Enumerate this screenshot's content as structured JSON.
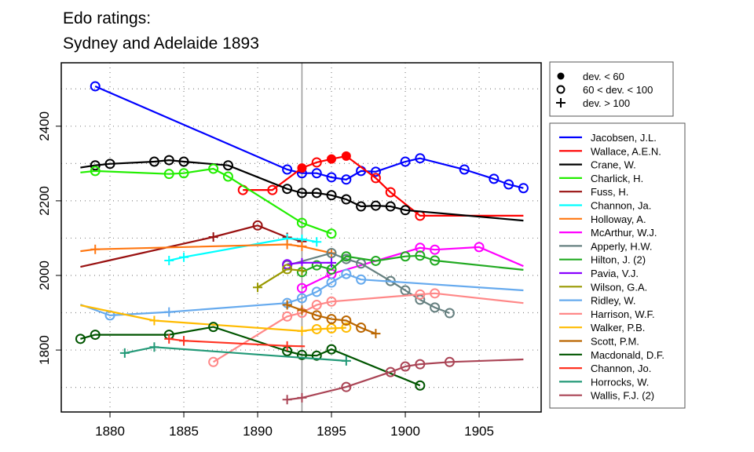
{
  "chart_data": {
    "type": "line",
    "title": [
      "Edo ratings:",
      "Sydney and Adelaide 1893"
    ],
    "xlabel": "",
    "ylabel": "",
    "xlim": [
      1876.7,
      1909.2
    ],
    "ylim": [
      1634,
      2570
    ],
    "xticks": [
      1880,
      1885,
      1890,
      1895,
      1900,
      1905
    ],
    "yticks": [
      1800,
      2000,
      2200,
      2400
    ],
    "grid_y": [
      1700,
      1800,
      1900,
      2000,
      2100,
      2200,
      2300,
      2400,
      2500
    ],
    "grid_x": [
      1880,
      1885,
      1890,
      1895,
      1900,
      1905
    ],
    "grid": true,
    "reference_year": 1893,
    "marker_legend": [
      {
        "marker": "filled",
        "label": "dev. < 60"
      },
      {
        "marker": "open",
        "label": "60 < dev. < 100"
      },
      {
        "marker": "plus",
        "label": "dev. > 100"
      }
    ],
    "legend_placement": "right",
    "series": [
      {
        "name": "Jacobsen, J.L.",
        "color": "#0000ff",
        "points": [
          [
            1879,
            2507,
            "open"
          ],
          [
            1892,
            2284,
            "open"
          ],
          [
            1893,
            2274,
            "open"
          ],
          [
            1894,
            2274,
            "open"
          ],
          [
            1895,
            2263,
            "open"
          ],
          [
            1896,
            2257,
            "open"
          ],
          [
            1897,
            2280,
            "open"
          ],
          [
            1898,
            2278,
            "open"
          ],
          [
            1900,
            2305,
            "open"
          ],
          [
            1901,
            2314,
            "open"
          ],
          [
            1904,
            2284,
            "open"
          ],
          [
            1906,
            2259,
            "open"
          ],
          [
            1907,
            2244,
            "open"
          ],
          [
            1908,
            2234,
            "open"
          ]
        ]
      },
      {
        "name": "Wallace, A.E.N.",
        "color": "#ff0000",
        "points": [
          [
            1889,
            2229,
            "open"
          ],
          [
            1891,
            2229,
            "open"
          ],
          [
            1893,
            2288,
            "filled"
          ],
          [
            1894,
            2303,
            "open"
          ],
          [
            1895,
            2312,
            "filled"
          ],
          [
            1896,
            2320,
            "filled"
          ],
          [
            1898,
            2261,
            "open"
          ],
          [
            1899,
            2223,
            "open"
          ],
          [
            1901,
            2160,
            "open"
          ],
          [
            1908,
            2160,
            "none"
          ]
        ]
      },
      {
        "name": "Crane, W.",
        "color": "#000000",
        "points": [
          [
            1878,
            2289,
            "none"
          ],
          [
            1879,
            2295,
            "open"
          ],
          [
            1880,
            2299,
            "open"
          ],
          [
            1883,
            2305,
            "open"
          ],
          [
            1884,
            2309,
            "open"
          ],
          [
            1885,
            2305,
            "open"
          ],
          [
            1888,
            2295,
            "open"
          ],
          [
            1892,
            2232,
            "open"
          ],
          [
            1893,
            2221,
            "open"
          ],
          [
            1894,
            2221,
            "open"
          ],
          [
            1895,
            2215,
            "open"
          ],
          [
            1896,
            2204,
            "open"
          ],
          [
            1897,
            2185,
            "open"
          ],
          [
            1898,
            2187,
            "open"
          ],
          [
            1899,
            2185,
            "open"
          ],
          [
            1900,
            2175,
            "open"
          ],
          [
            1908,
            2147,
            "none"
          ]
        ]
      },
      {
        "name": "Charlick, H.",
        "color": "#22ee00",
        "points": [
          [
            1878,
            2276,
            "none"
          ],
          [
            1879,
            2280,
            "open"
          ],
          [
            1884,
            2272,
            "open"
          ],
          [
            1885,
            2274,
            "open"
          ],
          [
            1887,
            2286,
            "open"
          ],
          [
            1888,
            2265,
            "open"
          ],
          [
            1893,
            2141,
            "open"
          ],
          [
            1895,
            2112,
            "open"
          ]
        ]
      },
      {
        "name": "Fuss, H.",
        "color": "#991111",
        "points": [
          [
            1878,
            2023,
            "none"
          ],
          [
            1887,
            2103,
            "plus"
          ],
          [
            1890,
            2134,
            "open"
          ],
          [
            1892,
            2102,
            "plus"
          ],
          [
            1893,
            2091,
            "plus"
          ]
        ]
      },
      {
        "name": "Channon, Ja.",
        "color": "#00ffff",
        "points": [
          [
            1884,
            2040,
            "plus"
          ],
          [
            1885,
            2049,
            "plus"
          ],
          [
            1892,
            2099,
            "plus"
          ],
          [
            1893,
            2097,
            "plus"
          ],
          [
            1894,
            2090,
            "plus"
          ]
        ]
      },
      {
        "name": "Holloway, A.",
        "color": "#ff7711",
        "points": [
          [
            1878,
            2065,
            "none"
          ],
          [
            1879,
            2070,
            "plus"
          ],
          [
            1892,
            2083,
            "plus"
          ],
          [
            1893,
            2078,
            "plus"
          ],
          [
            1895,
            2060,
            "plus"
          ]
        ]
      },
      {
        "name": "McArthur, W.J.",
        "color": "#ff00ff",
        "points": [
          [
            1893,
            1966,
            "open"
          ],
          [
            1895,
            2004,
            "open"
          ],
          [
            1901,
            2074,
            "open"
          ],
          [
            1902,
            2069,
            "open"
          ],
          [
            1905,
            2076,
            "open"
          ],
          [
            1908,
            2025,
            "none"
          ]
        ]
      },
      {
        "name": "Apperly, H.W.",
        "color": "#668080",
        "points": [
          [
            1892,
            2027,
            "open"
          ],
          [
            1895,
            2060,
            "open"
          ],
          [
            1896,
            2044,
            "open"
          ],
          [
            1897,
            2032,
            "open"
          ],
          [
            1899,
            1985,
            "open"
          ],
          [
            1900,
            1960,
            "open"
          ],
          [
            1901,
            1935,
            "open"
          ],
          [
            1902,
            1914,
            "open"
          ],
          [
            1903,
            1899,
            "open"
          ]
        ]
      },
      {
        "name": "Hilton, J. (2)",
        "color": "#22aa22",
        "points": [
          [
            1893,
            2009,
            "open"
          ],
          [
            1894,
            2027,
            "open"
          ],
          [
            1895,
            2016,
            "open"
          ],
          [
            1896,
            2051,
            "open"
          ],
          [
            1898,
            2039,
            "open"
          ],
          [
            1900,
            2051,
            "open"
          ],
          [
            1901,
            2053,
            "open"
          ],
          [
            1902,
            2040,
            "open"
          ],
          [
            1908,
            2015,
            "none"
          ]
        ]
      },
      {
        "name": "Pavia, V.J.",
        "color": "#8800ff",
        "points": [
          [
            1892,
            2030,
            "open"
          ],
          [
            1893,
            2034,
            "plus"
          ],
          [
            1895,
            2034,
            "plus"
          ]
        ]
      },
      {
        "name": "Wilson, G.A.",
        "color": "#999900",
        "points": [
          [
            1890,
            1968,
            "plus"
          ],
          [
            1892,
            2017,
            "open"
          ],
          [
            1893,
            2013,
            "plus"
          ]
        ]
      },
      {
        "name": "Ridley, W.",
        "color": "#66aaee",
        "points": [
          [
            1878,
            1922,
            "none"
          ],
          [
            1880,
            1893,
            "open"
          ],
          [
            1884,
            1902,
            "plus"
          ],
          [
            1892,
            1926,
            "open"
          ],
          [
            1893,
            1939,
            "open"
          ],
          [
            1894,
            1956,
            "open"
          ],
          [
            1895,
            1981,
            "open"
          ],
          [
            1896,
            2004,
            "open"
          ],
          [
            1897,
            1989,
            "open"
          ],
          [
            1908,
            1960,
            "none"
          ]
        ]
      },
      {
        "name": "Harrison, W.F.",
        "color": "#ff8888",
        "points": [
          [
            1887,
            1768,
            "open"
          ],
          [
            1892,
            1890,
            "open"
          ],
          [
            1893,
            1900,
            "open"
          ],
          [
            1894,
            1921,
            "open"
          ],
          [
            1895,
            1930,
            "open"
          ],
          [
            1901,
            1949,
            "open"
          ],
          [
            1902,
            1952,
            "open"
          ],
          [
            1908,
            1926,
            "none"
          ]
        ]
      },
      {
        "name": "Walker, P.B.",
        "color": "#ffbb00",
        "points": [
          [
            1878,
            1920,
            "none"
          ],
          [
            1883,
            1879,
            "plus"
          ],
          [
            1893,
            1851,
            "plus"
          ],
          [
            1894,
            1856,
            "open"
          ],
          [
            1895,
            1858,
            "open"
          ],
          [
            1896,
            1860,
            "open"
          ]
        ]
      },
      {
        "name": "Scott, P.M.",
        "color": "#bb6600",
        "points": [
          [
            1892,
            1921,
            "plus"
          ],
          [
            1893,
            1907,
            "plus"
          ],
          [
            1894,
            1893,
            "open"
          ],
          [
            1895,
            1883,
            "open"
          ],
          [
            1896,
            1879,
            "open"
          ],
          [
            1897,
            1860,
            "open"
          ],
          [
            1898,
            1844,
            "plus"
          ]
        ]
      },
      {
        "name": "Macdonald, D.F.",
        "color": "#005500",
        "points": [
          [
            1878,
            1830,
            "open"
          ],
          [
            1879,
            1841,
            "open"
          ],
          [
            1884,
            1841,
            "open"
          ],
          [
            1887,
            1862,
            "open"
          ],
          [
            1892,
            1797,
            "open"
          ],
          [
            1893,
            1787,
            "open"
          ],
          [
            1894,
            1785,
            "open"
          ],
          [
            1895,
            1802,
            "open"
          ],
          [
            1901,
            1705,
            "open"
          ]
        ]
      },
      {
        "name": "Channon, Jo.",
        "color": "#ff3322",
        "points": [
          [
            1884,
            1830,
            "plus"
          ],
          [
            1885,
            1825,
            "plus"
          ],
          [
            1892,
            1811,
            "plus"
          ],
          [
            1893.2,
            1810,
            "none"
          ]
        ]
      },
      {
        "name": "Horrocks, W.",
        "color": "#229977",
        "points": [
          [
            1881,
            1792,
            "plus"
          ],
          [
            1883,
            1808,
            "plus"
          ],
          [
            1896,
            1771,
            "plus"
          ]
        ]
      },
      {
        "name": "Wallis, F.J. (2)",
        "color": "#aa4455",
        "points": [
          [
            1892,
            1667,
            "plus"
          ],
          [
            1893,
            1672,
            "plus"
          ],
          [
            1896,
            1701,
            "open"
          ],
          [
            1899,
            1741,
            "open"
          ],
          [
            1900,
            1756,
            "open"
          ],
          [
            1901,
            1762,
            "open"
          ],
          [
            1903,
            1768,
            "open"
          ],
          [
            1908,
            1775,
            "none"
          ]
        ]
      }
    ]
  }
}
